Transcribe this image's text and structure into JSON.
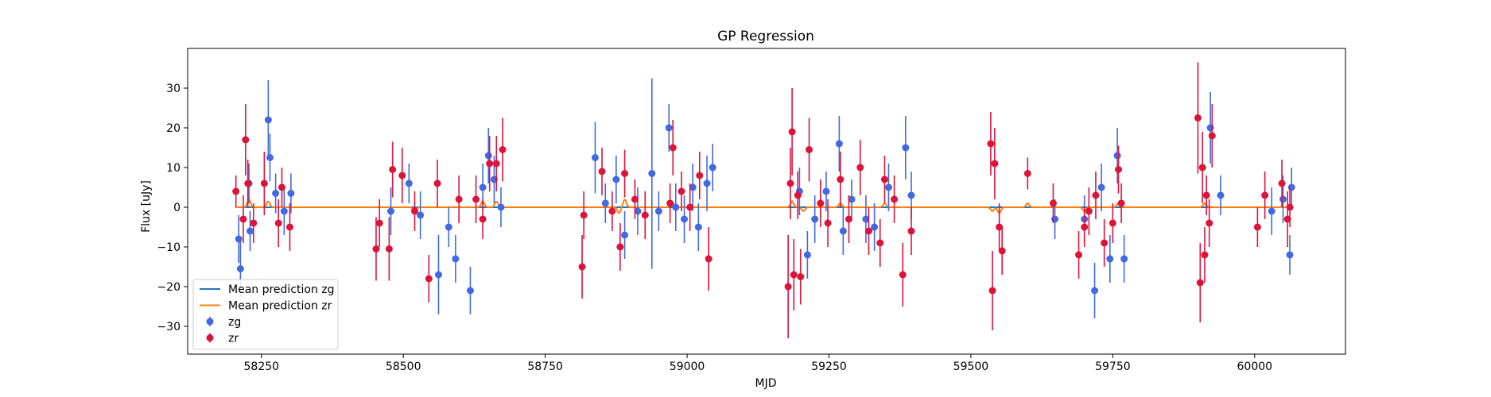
{
  "chart_data": {
    "type": "scatter",
    "title": "GP Regression",
    "xlabel": "MJD",
    "ylabel": "Flux [uJy]",
    "xlim": [
      58120,
      60160
    ],
    "ylim": [
      -37,
      40
    ],
    "xticks": [
      58250,
      58500,
      58750,
      59000,
      59250,
      59500,
      59750,
      60000
    ],
    "yticks": [
      -30,
      -20,
      -10,
      0,
      10,
      20,
      30
    ],
    "legend_position": "lower-left",
    "series": [
      {
        "name": "zg",
        "kind": "errorbar",
        "color": "#4169E1",
        "points": [
          [
            58210,
            -8,
            6
          ],
          [
            58213,
            -15.5,
            7
          ],
          [
            58228,
            6,
            5
          ],
          [
            58230,
            -6,
            5
          ],
          [
            58262,
            22,
            10
          ],
          [
            58265,
            12.5,
            6
          ],
          [
            58275,
            3.5,
            5
          ],
          [
            58290,
            -1,
            6
          ],
          [
            58302,
            3.5,
            5
          ],
          [
            58478,
            -1,
            6
          ],
          [
            58510,
            6,
            5
          ],
          [
            58530,
            -2,
            6
          ],
          [
            58562,
            -17,
            10
          ],
          [
            58580,
            -5,
            5
          ],
          [
            58592,
            -13,
            6
          ],
          [
            58618,
            -21,
            6
          ],
          [
            58640,
            5,
            6
          ],
          [
            58650,
            13,
            7
          ],
          [
            58660,
            7,
            6
          ],
          [
            58672,
            0,
            5
          ],
          [
            58838,
            12.5,
            9
          ],
          [
            58856,
            1,
            5
          ],
          [
            58875,
            7,
            6
          ],
          [
            58890,
            -7,
            6
          ],
          [
            58913,
            -1,
            6
          ],
          [
            58938,
            8.5,
            24
          ],
          [
            58950,
            -1,
            5
          ],
          [
            58968,
            20,
            6
          ],
          [
            58980,
            0,
            6
          ],
          [
            58995,
            -3,
            6
          ],
          [
            59010,
            5,
            6
          ],
          [
            59020,
            -5,
            6
          ],
          [
            59035,
            6,
            7
          ],
          [
            59045,
            10,
            6
          ],
          [
            59198,
            4,
            6
          ],
          [
            59212,
            -12,
            6
          ],
          [
            59225,
            -3,
            6
          ],
          [
            59245,
            4,
            5
          ],
          [
            59268,
            16,
            7
          ],
          [
            59275,
            -6,
            6
          ],
          [
            59290,
            2,
            5
          ],
          [
            59315,
            -3,
            6
          ],
          [
            59330,
            -5,
            6
          ],
          [
            59355,
            5,
            6
          ],
          [
            59385,
            15,
            8
          ],
          [
            59395,
            3,
            6
          ],
          [
            59648,
            -3,
            5
          ],
          [
            59700,
            -3,
            6
          ],
          [
            59718,
            -21,
            7
          ],
          [
            59730,
            5,
            6
          ],
          [
            59745,
            -13,
            6
          ],
          [
            59758,
            13,
            7
          ],
          [
            59770,
            -13,
            6
          ],
          [
            59922,
            20,
            9
          ],
          [
            59940,
            3,
            5
          ],
          [
            60030,
            -1,
            6
          ],
          [
            60050,
            2,
            6
          ],
          [
            60062,
            -12,
            5
          ],
          [
            60065,
            5,
            5
          ]
        ]
      },
      {
        "name": "zr",
        "kind": "errorbar",
        "color": "#DC143C",
        "points": [
          [
            58205,
            4,
            4
          ],
          [
            58218,
            -3,
            6
          ],
          [
            58222,
            17,
            9
          ],
          [
            58226,
            6,
            6
          ],
          [
            58236,
            -4,
            5
          ],
          [
            58255,
            6,
            8
          ],
          [
            58280,
            -4,
            6
          ],
          [
            58286,
            5,
            5
          ],
          [
            58300,
            -5,
            6
          ],
          [
            58452,
            -10.5,
            8
          ],
          [
            58458,
            -4,
            6
          ],
          [
            58475,
            -10.5,
            8
          ],
          [
            58481,
            9.5,
            7
          ],
          [
            58498,
            8,
            7
          ],
          [
            58520,
            -1,
            5
          ],
          [
            58545,
            -18,
            6
          ],
          [
            58560,
            6,
            6
          ],
          [
            58598,
            2,
            6
          ],
          [
            58628,
            2,
            6
          ],
          [
            58640,
            -3,
            5
          ],
          [
            58652,
            11,
            7
          ],
          [
            58664,
            11,
            7
          ],
          [
            58675,
            14.5,
            8
          ],
          [
            58815,
            -15,
            8
          ],
          [
            58818,
            -2,
            6
          ],
          [
            58850,
            9,
            6
          ],
          [
            58868,
            -1,
            5
          ],
          [
            58882,
            -10,
            6
          ],
          [
            58890,
            8.5,
            6
          ],
          [
            58908,
            2,
            5
          ],
          [
            58926,
            -2,
            6
          ],
          [
            58970,
            1,
            5
          ],
          [
            58975,
            15,
            7
          ],
          [
            58990,
            4,
            5
          ],
          [
            59005,
            0,
            6
          ],
          [
            59022,
            8,
            6
          ],
          [
            59038,
            -13,
            8
          ],
          [
            59178,
            -20,
            13
          ],
          [
            59182,
            6,
            9
          ],
          [
            59185,
            19,
            11
          ],
          [
            59188,
            -17,
            9
          ],
          [
            59195,
            3,
            6
          ],
          [
            59200,
            -17.5,
            7
          ],
          [
            59215,
            14.5,
            8
          ],
          [
            59235,
            1,
            6
          ],
          [
            59248,
            -4,
            6
          ],
          [
            59270,
            7,
            7
          ],
          [
            59285,
            -3,
            6
          ],
          [
            59305,
            10,
            7
          ],
          [
            59320,
            -6,
            6
          ],
          [
            59340,
            -9,
            6
          ],
          [
            59348,
            7,
            6
          ],
          [
            59365,
            2,
            6
          ],
          [
            59380,
            -17,
            8
          ],
          [
            59395,
            -6,
            6
          ],
          [
            59535,
            16,
            8
          ],
          [
            59538,
            -21,
            10
          ],
          [
            59542,
            11,
            9
          ],
          [
            59550,
            -5,
            6
          ],
          [
            59555,
            -11,
            6
          ],
          [
            59600,
            8.5,
            4
          ],
          [
            59645,
            1,
            5
          ],
          [
            59690,
            -12,
            6
          ],
          [
            59700,
            -5,
            5
          ],
          [
            59708,
            -1,
            6
          ],
          [
            59720,
            3,
            6
          ],
          [
            59735,
            -9,
            6
          ],
          [
            59750,
            -4,
            5
          ],
          [
            59760,
            9.5,
            6
          ],
          [
            59765,
            1,
            5
          ],
          [
            59900,
            22.5,
            14
          ],
          [
            59904,
            -19,
            10
          ],
          [
            59908,
            10,
            9
          ],
          [
            59912,
            -12,
            7
          ],
          [
            59915,
            3,
            5
          ],
          [
            59920,
            -4,
            6
          ],
          [
            59925,
            18,
            8
          ],
          [
            60005,
            -5,
            5
          ],
          [
            60018,
            3,
            6
          ],
          [
            60048,
            6,
            6
          ],
          [
            60058,
            -3,
            7
          ],
          [
            60062,
            0,
            5
          ]
        ]
      },
      {
        "name": "Mean prediction zg",
        "kind": "line",
        "color": "#1f77b4",
        "x_range": [
          58205,
          60065
        ],
        "value": 0
      },
      {
        "name": "Mean prediction zr",
        "kind": "line",
        "color": "#ff7f0e",
        "x_range": [
          58205,
          60065
        ],
        "value": 0,
        "bumps": [
          [
            58228,
            2
          ],
          [
            58262,
            1.5
          ],
          [
            58520,
            -1
          ],
          [
            58640,
            1.5
          ],
          [
            58664,
            1.5
          ],
          [
            58880,
            -1.5
          ],
          [
            58890,
            2
          ],
          [
            58975,
            1
          ],
          [
            59185,
            1.5
          ],
          [
            59205,
            -1
          ],
          [
            59270,
            1
          ],
          [
            59348,
            1
          ],
          [
            59538,
            -1
          ],
          [
            59550,
            -1.5
          ],
          [
            59600,
            1
          ],
          [
            59700,
            -1
          ],
          [
            59760,
            1
          ],
          [
            59912,
            1
          ]
        ]
      }
    ],
    "legend": [
      {
        "label": "Mean prediction zg",
        "kind": "line",
        "color": "#1f77b4"
      },
      {
        "label": "Mean prediction zr",
        "kind": "line",
        "color": "#ff7f0e"
      },
      {
        "label": "zg",
        "kind": "errorbar",
        "color": "#4169E1"
      },
      {
        "label": "zr",
        "kind": "errorbar",
        "color": "#DC143C"
      }
    ]
  }
}
